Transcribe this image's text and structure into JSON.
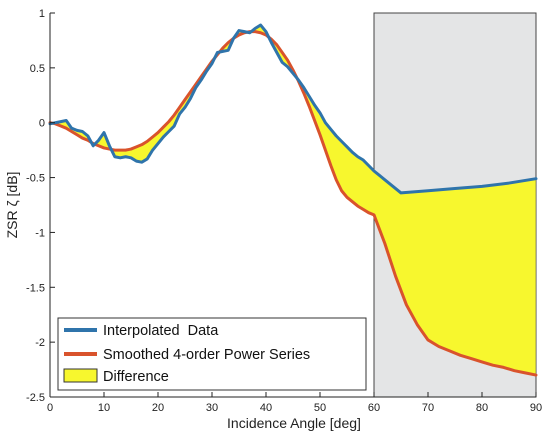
{
  "chart_data": {
    "type": "line",
    "xlabel": "Incidence Angle [deg]",
    "ylabel": "ZSR ζ [dB]",
    "xlim": [
      0,
      90
    ],
    "ylim": [
      -2.5,
      1
    ],
    "x_ticks": [
      0,
      10,
      20,
      30,
      40,
      50,
      60,
      70,
      80,
      90
    ],
    "y_ticks": [
      1,
      0.5,
      0,
      -0.5,
      -1,
      -1.5,
      -2,
      -2.5
    ],
    "x_tick_labels": [
      "0",
      "10",
      "20",
      "30",
      "40",
      "50",
      "60",
      "70",
      "80",
      "90"
    ],
    "y_tick_labels": [
      "1",
      "0.5",
      "0",
      "-0.5",
      "-1",
      "-1.5",
      "-2",
      "-2.5"
    ],
    "grid": false,
    "legend_position": "bottom-left",
    "shaded_region": {
      "x_range": [
        60,
        90
      ],
      "color": "#e4e5e6"
    },
    "series": [
      {
        "name": "Interpolated  Data",
        "color": "#2f74ab",
        "x": [
          0,
          1,
          2,
          3,
          4,
          5,
          6,
          7,
          8,
          9,
          10,
          11,
          12,
          13,
          14,
          15,
          16,
          17,
          18,
          19,
          20,
          21,
          22,
          23,
          24,
          25,
          26,
          27,
          28,
          29,
          30,
          31,
          32,
          33,
          34,
          35,
          36,
          37,
          38,
          39,
          40,
          41,
          42,
          43,
          44,
          45,
          46,
          47,
          48,
          49,
          50,
          51,
          52,
          53,
          54,
          55,
          56,
          57,
          58,
          59,
          60,
          65,
          70,
          75,
          80,
          85,
          90
        ],
        "y": [
          -0.01,
          0.0,
          0.01,
          0.02,
          -0.05,
          -0.07,
          -0.08,
          -0.12,
          -0.21,
          -0.16,
          -0.09,
          -0.21,
          -0.31,
          -0.32,
          -0.31,
          -0.32,
          -0.35,
          -0.36,
          -0.33,
          -0.25,
          -0.19,
          -0.13,
          -0.08,
          -0.03,
          0.08,
          0.14,
          0.22,
          0.32,
          0.39,
          0.47,
          0.54,
          0.64,
          0.65,
          0.66,
          0.77,
          0.84,
          0.83,
          0.82,
          0.86,
          0.89,
          0.83,
          0.73,
          0.64,
          0.55,
          0.51,
          0.45,
          0.39,
          0.32,
          0.24,
          0.16,
          0.09,
          0.0,
          -0.06,
          -0.12,
          -0.17,
          -0.22,
          -0.27,
          -0.31,
          -0.34,
          -0.39,
          -0.44,
          -0.64,
          -0.62,
          -0.6,
          -0.58,
          -0.55,
          -0.51
        ]
      },
      {
        "name": "Smoothed 4-order Power Series",
        "color": "#d9532c",
        "x": [
          0,
          1,
          2,
          3,
          4,
          5,
          6,
          7,
          8,
          9,
          10,
          11,
          12,
          13,
          14,
          15,
          16,
          17,
          18,
          19,
          20,
          21,
          22,
          23,
          24,
          25,
          26,
          27,
          28,
          29,
          30,
          31,
          32,
          33,
          34,
          35,
          36,
          37,
          38,
          39,
          40,
          41,
          42,
          43,
          44,
          45,
          46,
          47,
          48,
          49,
          50,
          51,
          52,
          53,
          54,
          55,
          56,
          57,
          58,
          59,
          60,
          62,
          64,
          66,
          68,
          70,
          72,
          74,
          76,
          78,
          80,
          82,
          84,
          86,
          88,
          90
        ],
        "y": [
          0.0,
          -0.01,
          -0.03,
          -0.05,
          -0.08,
          -0.11,
          -0.14,
          -0.16,
          -0.19,
          -0.21,
          -0.23,
          -0.24,
          -0.25,
          -0.25,
          -0.25,
          -0.24,
          -0.22,
          -0.2,
          -0.17,
          -0.13,
          -0.09,
          -0.04,
          0.01,
          0.07,
          0.14,
          0.21,
          0.28,
          0.35,
          0.42,
          0.49,
          0.56,
          0.62,
          0.68,
          0.73,
          0.77,
          0.8,
          0.82,
          0.83,
          0.83,
          0.82,
          0.8,
          0.76,
          0.71,
          0.64,
          0.57,
          0.48,
          0.38,
          0.27,
          0.15,
          0.02,
          -0.11,
          -0.25,
          -0.39,
          -0.52,
          -0.62,
          -0.68,
          -0.72,
          -0.76,
          -0.79,
          -0.82,
          -0.84,
          -1.1,
          -1.4,
          -1.66,
          -1.84,
          -1.98,
          -2.04,
          -2.08,
          -2.12,
          -2.15,
          -2.18,
          -2.21,
          -2.23,
          -2.26,
          -2.28,
          -2.3
        ]
      }
    ],
    "difference_fill": {
      "name": "Difference",
      "color": "#f7f72e"
    }
  }
}
